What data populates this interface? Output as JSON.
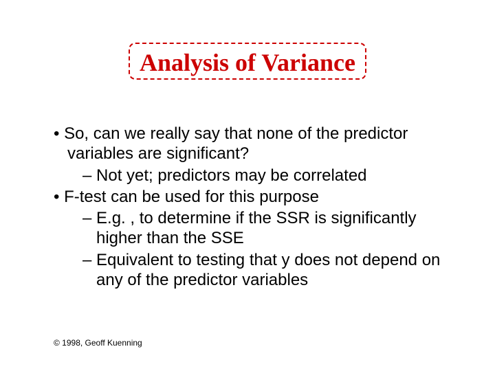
{
  "title": {
    "text": "Analysis of Variance",
    "text_color": "#cc0000",
    "border_color": "#cc0000",
    "fontsize": 36
  },
  "bullets": {
    "b1": "So, can we really say that none of the predictor variables are significant?",
    "b1a": "Not yet; predictors may be correlated",
    "b2": "F-test can be used for this purpose",
    "b2a": "E.g. , to determine if the SSR is significantly higher than the SSE",
    "b2b": "Equivalent to testing that y does not depend on any of the predictor variables"
  },
  "footer": "© 1998, Geoff Kuenning",
  "colors": {
    "background": "#ffffff",
    "body_text": "#000000"
  }
}
